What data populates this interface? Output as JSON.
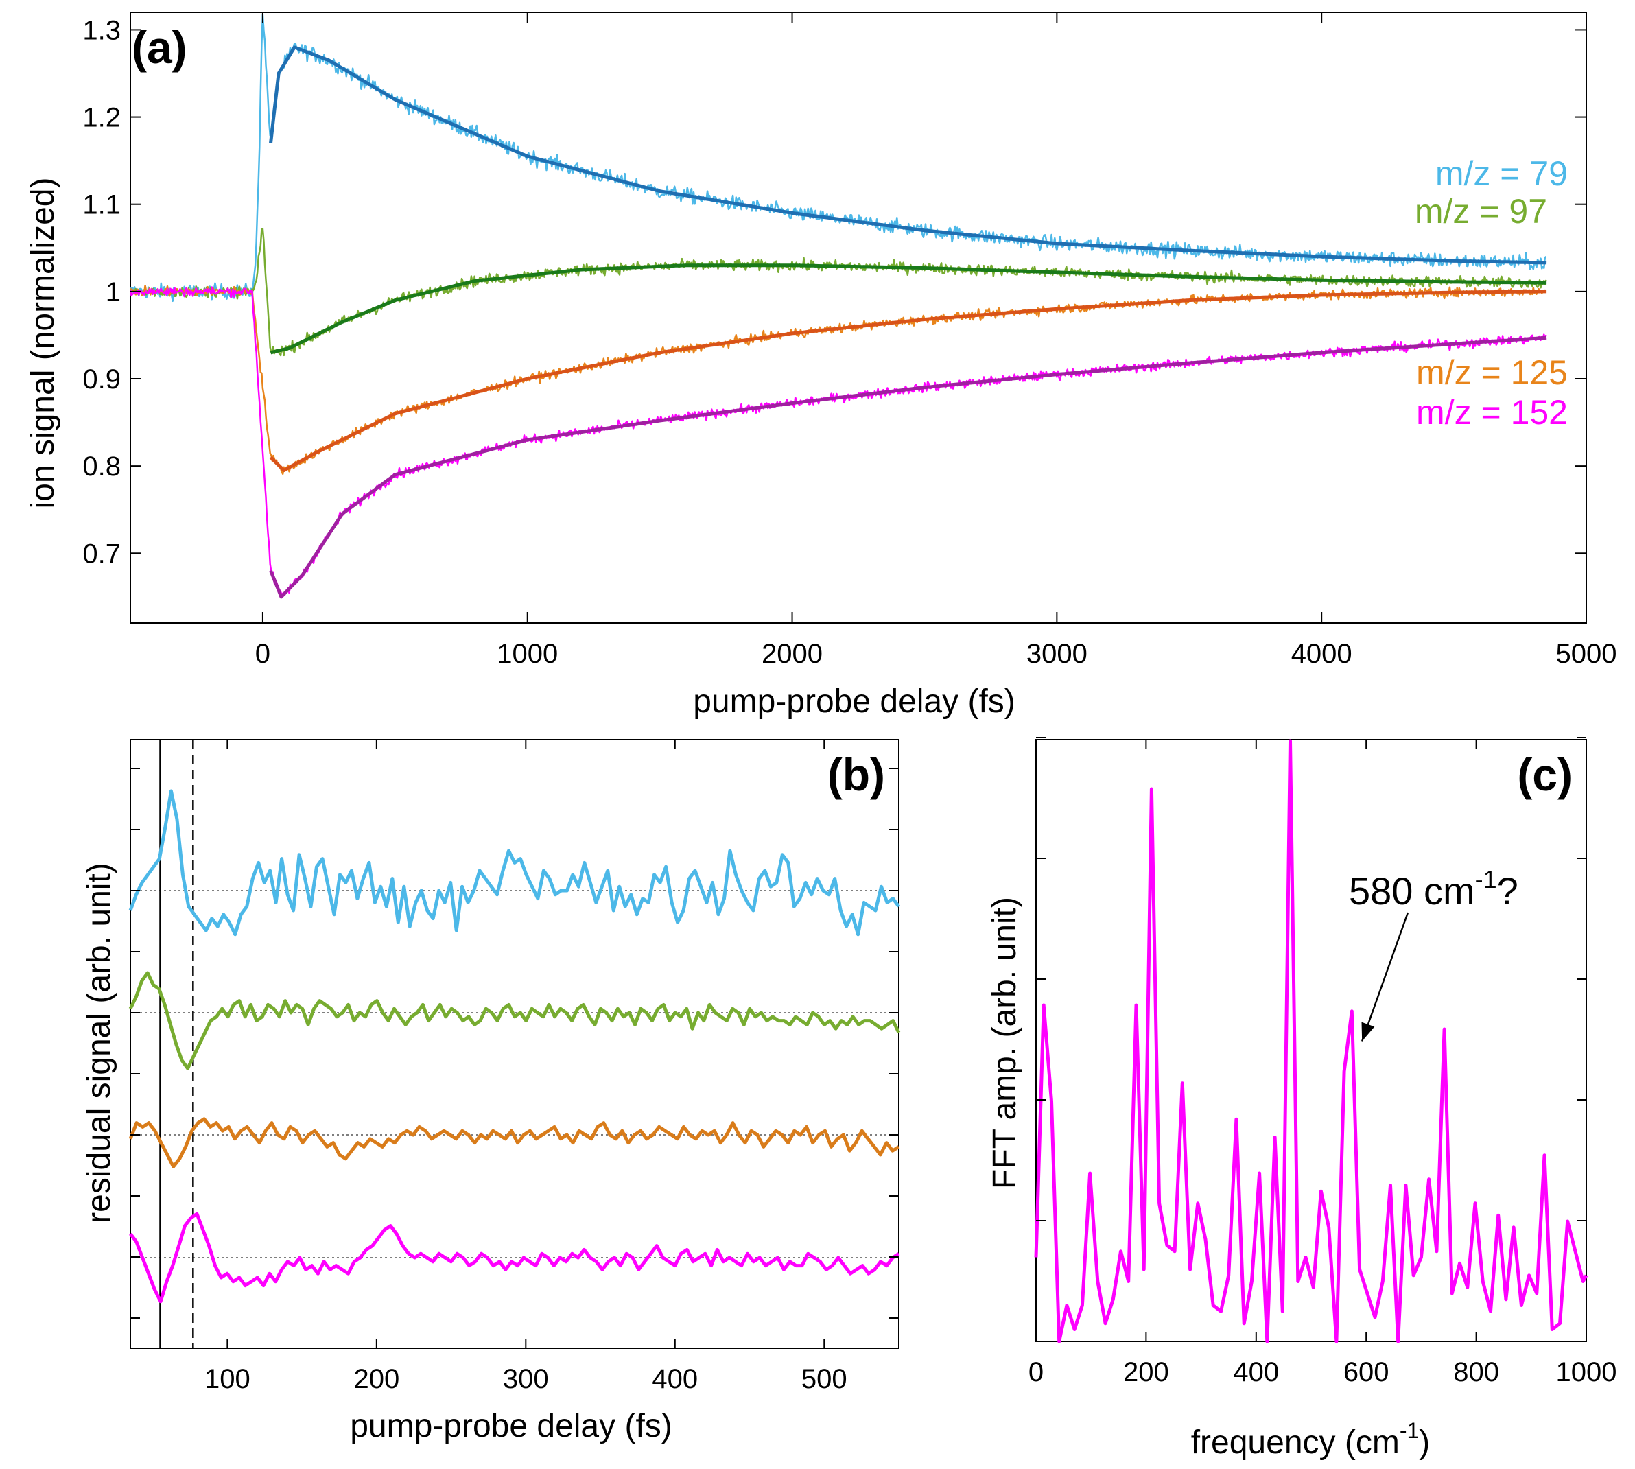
{
  "chart_data": [
    {
      "panel": "(a)",
      "type": "line",
      "xlabel": "pump-probe delay (fs)",
      "ylabel": "ion signal (normalized)",
      "xlim": [
        -500,
        5000
      ],
      "ylim": [
        0.62,
        1.32
      ],
      "xticks": [
        0,
        1000,
        2000,
        3000,
        4000,
        5000
      ],
      "yticks": [
        0.7,
        0.8,
        0.9,
        1,
        1.1,
        1.2,
        1.3
      ],
      "ytick_labels": [
        "0.7",
        "0.8",
        "0.9",
        "1",
        "1.1",
        "1.2",
        "1.3"
      ],
      "series": [
        {
          "name": "m/z = 79",
          "color": "#4cb8e8",
          "fit_color": "#1f6fb2",
          "baseline": 1.0,
          "spike_peak": 1.33,
          "fit_start": [
            30,
            1.17
          ],
          "fit_peak": [
            120,
            1.28
          ],
          "fit_points": [
            [
              30,
              1.17
            ],
            [
              60,
              1.25
            ],
            [
              120,
              1.28
            ],
            [
              250,
              1.265
            ],
            [
              500,
              1.22
            ],
            [
              1000,
              1.155
            ],
            [
              1500,
              1.115
            ],
            [
              2000,
              1.09
            ],
            [
              2500,
              1.07
            ],
            [
              3000,
              1.055
            ],
            [
              3500,
              1.047
            ],
            [
              4000,
              1.04
            ],
            [
              4500,
              1.035
            ],
            [
              4850,
              1.033
            ]
          ]
        },
        {
          "name": "m/z = 97",
          "color": "#77ac30",
          "fit_color": "#1a7a1a",
          "baseline": 1.0,
          "spike_peak": 1.08,
          "fit_start": [
            30,
            0.93
          ],
          "fit_points": [
            [
              30,
              0.93
            ],
            [
              100,
              0.935
            ],
            [
              300,
              0.965
            ],
            [
              500,
              0.99
            ],
            [
              800,
              1.012
            ],
            [
              1200,
              1.025
            ],
            [
              1600,
              1.03
            ],
            [
              2000,
              1.03
            ],
            [
              2500,
              1.027
            ],
            [
              3000,
              1.022
            ],
            [
              3500,
              1.017
            ],
            [
              4000,
              1.013
            ],
            [
              4500,
              1.011
            ],
            [
              4850,
              1.01
            ]
          ]
        },
        {
          "name": "m/z = 125",
          "color": "#e8841a",
          "fit_color": "#d95319",
          "baseline": 1.0,
          "fit_start": [
            30,
            0.81
          ],
          "fit_min": [
            80,
            0.795
          ],
          "fit_points": [
            [
              30,
              0.81
            ],
            [
              80,
              0.795
            ],
            [
              200,
              0.815
            ],
            [
              500,
              0.86
            ],
            [
              1000,
              0.9
            ],
            [
              1500,
              0.93
            ],
            [
              2000,
              0.952
            ],
            [
              2500,
              0.968
            ],
            [
              3000,
              0.98
            ],
            [
              3500,
              0.99
            ],
            [
              4000,
              0.996
            ],
            [
              4500,
              0.999
            ],
            [
              4850,
              1.0
            ]
          ]
        },
        {
          "name": "m/z = 152",
          "color": "#ff00ff",
          "fit_color": "#a020a0",
          "baseline": 1.0,
          "fit_start": [
            30,
            0.68
          ],
          "fit_min": [
            70,
            0.65
          ],
          "fit_points": [
            [
              30,
              0.68
            ],
            [
              70,
              0.65
            ],
            [
              150,
              0.675
            ],
            [
              300,
              0.745
            ],
            [
              500,
              0.79
            ],
            [
              1000,
              0.83
            ],
            [
              1500,
              0.852
            ],
            [
              2000,
              0.872
            ],
            [
              2500,
              0.89
            ],
            [
              3000,
              0.905
            ],
            [
              3500,
              0.918
            ],
            [
              4000,
              0.93
            ],
            [
              4500,
              0.94
            ],
            [
              4850,
              0.947
            ]
          ]
        }
      ]
    },
    {
      "panel": "(b)",
      "type": "line",
      "xlabel": "pump-probe delay (fs)",
      "ylabel": "residual signal (arb. unit)",
      "xlim": [
        35,
        550
      ],
      "xticks": [
        100,
        200,
        300,
        400,
        500
      ],
      "ytick_count": 10,
      "vertical_lines": [
        {
          "x": 55,
          "style": "solid"
        },
        {
          "x": 77,
          "style": "dashed"
        }
      ],
      "series": [
        {
          "name": "m/z = 79",
          "color": "#4cb8e8",
          "offset_level": 3,
          "values": [
            -0.5,
            -0.1,
            0.2,
            0.4,
            0.6,
            0.8,
            1.6,
            2.5,
            1.8,
            0.4,
            -0.4,
            -0.6,
            -0.8,
            -1.0,
            -0.7,
            -0.9,
            -0.6,
            -0.8,
            -1.1,
            -0.6,
            -0.4,
            0.3,
            0.7,
            0.2,
            0.5,
            -0.3,
            0.8,
            -0.1,
            -0.5,
            0.9,
            0.3,
            -0.4,
            0.6,
            0.8,
            0.1,
            -0.6,
            0.4,
            0.2,
            0.5,
            -0.2,
            0.3,
            0.7,
            -0.3,
            0.1,
            -0.4,
            0.3,
            -0.8,
            0.1,
            -0.9,
            -0.3,
            0.0,
            -0.5,
            -0.7,
            0.0,
            -0.3,
            0.2,
            -1.0,
            0.1,
            -0.3,
            0.0,
            0.5,
            0.3,
            0.1,
            -0.1,
            0.5,
            1.0,
            0.7,
            0.8,
            0.4,
            0.1,
            -0.2,
            0.5,
            0.3,
            -0.1,
            0.0,
            0.0,
            0.4,
            0.1,
            0.7,
            0.2,
            -0.3,
            0.1,
            0.5,
            -0.5,
            0.1,
            -0.4,
            -0.1,
            -0.6,
            -0.2,
            -0.3,
            0.4,
            0.2,
            0.6,
            -0.3,
            -0.8,
            -0.5,
            0.3,
            0.5,
            0.1,
            -0.3,
            0.2,
            -0.6,
            -0.2,
            1.0,
            0.4,
            0.0,
            -0.3,
            -0.5,
            0.3,
            0.5,
            0.1,
            0.2,
            0.9,
            0.7,
            -0.4,
            -0.2,
            0.2,
            -0.1,
            0.3,
            0.0,
            -0.1,
            0.3,
            -0.5,
            -0.9,
            -0.6,
            -1.1,
            -0.3,
            -0.4,
            -0.5,
            0.1,
            -0.3,
            -0.2,
            -0.4
          ]
        },
        {
          "name": "m/z = 97",
          "color": "#77ac30",
          "offset_level": 2,
          "values": [
            0.1,
            0.4,
            0.8,
            1.0,
            0.7,
            0.6,
            0.2,
            -0.3,
            -0.8,
            -1.2,
            -1.4,
            -1.1,
            -0.8,
            -0.5,
            -0.2,
            -0.1,
            0.1,
            -0.1,
            0.2,
            0.3,
            -0.1,
            0.2,
            -0.2,
            -0.1,
            0.2,
            0.1,
            -0.1,
            0.3,
            0.0,
            0.2,
            0.1,
            -0.3,
            0.1,
            0.3,
            0.2,
            0.1,
            -0.1,
            0.0,
            0.2,
            -0.2,
            0.0,
            -0.1,
            0.2,
            0.3,
            0.0,
            -0.2,
            0.1,
            -0.1,
            -0.3,
            -0.1,
            0.0,
            0.2,
            -0.2,
            0.0,
            0.2,
            -0.1,
            0.1,
            0.0,
            -0.2,
            -0.1,
            -0.3,
            -0.2,
            0.1,
            0.0,
            -0.2,
            0.1,
            0.2,
            -0.1,
            0.0,
            -0.2,
            0.1,
            0.0,
            -0.1,
            0.2,
            -0.1,
            0.1,
            0.0,
            -0.2,
            0.1,
            0.2,
            -0.1,
            -0.3,
            0.1,
            0.0,
            -0.2,
            0.1,
            -0.1,
            0.0,
            -0.3,
            0.1,
            0.0,
            -0.2,
            0.1,
            0.2,
            -0.2,
            0.0,
            -0.1,
            0.1,
            -0.4,
            0.0,
            -0.2,
            0.2,
            0.0,
            -0.1,
            -0.2,
            0.1,
            0.0,
            -0.3,
            0.1,
            -0.1,
            0.0,
            -0.2,
            -0.1,
            -0.2,
            -0.2,
            -0.3,
            -0.1,
            -0.2,
            -0.3,
            0.0,
            -0.1,
            -0.3,
            -0.2,
            -0.4,
            -0.2,
            -0.3,
            -0.1,
            -0.3,
            -0.2,
            -0.2,
            -0.3,
            -0.4,
            -0.3,
            -0.2,
            -0.5
          ]
        },
        {
          "name": "m/z = 125",
          "color": "#d97c1a",
          "offset_level": 1,
          "values": [
            -0.1,
            0.3,
            0.2,
            0.3,
            0.1,
            -0.2,
            -0.5,
            -0.8,
            -0.6,
            -0.3,
            0.1,
            0.3,
            0.4,
            0.2,
            0.3,
            0.1,
            0.2,
            -0.1,
            0.1,
            0.2,
            0.0,
            -0.2,
            0.1,
            0.3,
            0.0,
            -0.1,
            0.2,
            0.1,
            -0.2,
            0.0,
            0.1,
            -0.1,
            -0.3,
            -0.2,
            -0.5,
            -0.6,
            -0.4,
            -0.2,
            -0.3,
            -0.1,
            -0.2,
            -0.3,
            -0.1,
            -0.2,
            0.0,
            0.1,
            0.0,
            0.2,
            0.1,
            -0.1,
            0.0,
            0.1,
            0.0,
            -0.1,
            0.1,
            0.0,
            -0.2,
            0.0,
            -0.1,
            0.1,
            0.0,
            -0.1,
            0.1,
            -0.2,
            0.0,
            0.1,
            -0.1,
            0.0,
            0.1,
            0.2,
            -0.1,
            0.0,
            -0.2,
            0.1,
            0.0,
            -0.1,
            0.2,
            0.3,
            0.0,
            -0.1,
            0.1,
            -0.2,
            0.0,
            0.1,
            -0.1,
            0.0,
            0.2,
            0.1,
            0.0,
            -0.1,
            0.2,
            0.0,
            -0.1,
            0.1,
            0.0,
            0.1,
            -0.2,
            0.0,
            0.3,
            0.0,
            -0.2,
            0.1,
            0.0,
            -0.3,
            -0.1,
            0.1,
            0.0,
            -0.2,
            0.1,
            0.0,
            0.2,
            -0.2,
            0.0,
            0.1,
            -0.3,
            -0.1,
            0.0,
            -0.4,
            -0.2,
            0.1,
            -0.1,
            -0.3,
            -0.5,
            -0.2,
            -0.4,
            -0.3
          ]
        },
        {
          "name": "m/z = 152",
          "color": "#ff00ff",
          "offset_level": 0,
          "values": [
            0.6,
            0.4,
            0.0,
            -0.4,
            -0.8,
            -1.1,
            -0.6,
            -0.2,
            0.3,
            0.8,
            1.0,
            1.1,
            0.7,
            0.3,
            -0.2,
            -0.5,
            -0.4,
            -0.6,
            -0.5,
            -0.7,
            -0.6,
            -0.5,
            -0.7,
            -0.4,
            -0.6,
            -0.3,
            -0.1,
            -0.2,
            0.0,
            -0.3,
            -0.2,
            -0.4,
            -0.1,
            -0.3,
            -0.2,
            -0.3,
            -0.4,
            -0.1,
            0.0,
            0.2,
            0.3,
            0.5,
            0.7,
            0.8,
            0.6,
            0.3,
            0.1,
            0.0,
            0.1,
            0.0,
            -0.1,
            0.1,
            0.0,
            -0.1,
            0.1,
            0.0,
            -0.2,
            -0.1,
            0.1,
            0.0,
            -0.2,
            -0.1,
            -0.3,
            -0.1,
            -0.2,
            0.0,
            -0.1,
            -0.2,
            0.1,
            0.0,
            -0.2,
            0.0,
            -0.1,
            0.1,
            0.0,
            0.2,
            0.0,
            -0.1,
            -0.3,
            -0.1,
            0.0,
            -0.2,
            0.1,
            0.0,
            -0.3,
            -0.1,
            0.1,
            0.3,
            0.0,
            -0.1,
            -0.2,
            0.1,
            0.2,
            -0.1,
            0.0,
            0.1,
            -0.2,
            0.2,
            -0.1,
            0.0,
            -0.1,
            -0.2,
            0.1,
            -0.1,
            0.0,
            -0.2,
            -0.1,
            0.0,
            -0.3,
            -0.1,
            -0.2,
            -0.2,
            0.1,
            0.0,
            -0.1,
            -0.3,
            -0.2,
            0.0,
            -0.2,
            -0.4,
            -0.3,
            -0.2,
            -0.4,
            -0.3,
            -0.1,
            -0.2,
            0.0,
            0.1
          ]
        }
      ]
    },
    {
      "panel": "(c)",
      "type": "line",
      "xlabel": "frequency (cm",
      "xlabel_sup": "-1",
      "xlabel_tail": ")",
      "ylabel": "FFT amp. (arb. unit)",
      "xlim": [
        0,
        1000
      ],
      "ylim": [
        0,
        1.0
      ],
      "xticks": [
        0,
        200,
        400,
        600,
        800,
        1000
      ],
      "ytick_count": 6,
      "annotation": {
        "text": "580 cm",
        "sup": "-1",
        "tail": "?",
        "arrow_target": [
          590,
          0.5
        ]
      },
      "series": [
        {
          "name": "m/z = 152",
          "color": "#ff00ff",
          "x": [
            0,
            14,
            28,
            42,
            56,
            70,
            84,
            98,
            112,
            126,
            140,
            154,
            168,
            182,
            196,
            210,
            224,
            238,
            252,
            266,
            280,
            294,
            308,
            322,
            336,
            350,
            364,
            378,
            392,
            406,
            420,
            434,
            448,
            462,
            476,
            490,
            504,
            518,
            532,
            546,
            560,
            574,
            588,
            602,
            616,
            630,
            644,
            658,
            672,
            686,
            700,
            714,
            728,
            742,
            756,
            770,
            784,
            798,
            812,
            826,
            840,
            854,
            868,
            882,
            896,
            910,
            924,
            938,
            952,
            966,
            980,
            994,
            1000
          ],
          "values": [
            0.14,
            0.56,
            0.4,
            0.0,
            0.06,
            0.02,
            0.06,
            0.28,
            0.1,
            0.03,
            0.07,
            0.15,
            0.1,
            0.56,
            0.12,
            0.92,
            0.23,
            0.16,
            0.15,
            0.43,
            0.12,
            0.23,
            0.17,
            0.06,
            0.05,
            0.11,
            0.37,
            0.03,
            0.1,
            0.28,
            0.0,
            0.34,
            0.05,
            1.0,
            0.1,
            0.14,
            0.09,
            0.25,
            0.19,
            0.0,
            0.45,
            0.55,
            0.12,
            0.08,
            0.04,
            0.1,
            0.26,
            0.0,
            0.26,
            0.11,
            0.14,
            0.27,
            0.15,
            0.52,
            0.08,
            0.13,
            0.09,
            0.23,
            0.1,
            0.05,
            0.21,
            0.07,
            0.19,
            0.06,
            0.11,
            0.08,
            0.31,
            0.02,
            0.03,
            0.2,
            0.15,
            0.1,
            0.11
          ]
        }
      ]
    }
  ],
  "panel_labels": {
    "a": "(a)",
    "b": "(b)",
    "c": "(c)"
  },
  "legend": {
    "m79": "m/z = 79",
    "m97": "m/z = 97",
    "m125": "m/z = 125",
    "m152": "m/z = 152"
  },
  "axis_titles": {
    "a_x": "pump-probe delay (fs)",
    "a_y": "ion signal (normalized)",
    "b_x": "pump-probe delay (fs)",
    "b_y": "residual signal (arb. unit)",
    "c_x": "frequency (cm",
    "c_x_sup": "-1",
    "c_x_tail": ")",
    "c_y": "FFT amp. (arb. unit)"
  },
  "annotation_c": {
    "text": "580 cm",
    "sup": "-1",
    "tail": "?"
  },
  "colors": {
    "m79_data": "#4cb8e8",
    "m79_fit": "#1f6fb2",
    "m97_data": "#77ac30",
    "m97_fit": "#1a7a1a",
    "m125_data": "#e8841a",
    "m125_fit": "#d95319",
    "m152_data": "#ff00ff",
    "m152_fit": "#a020a0"
  }
}
